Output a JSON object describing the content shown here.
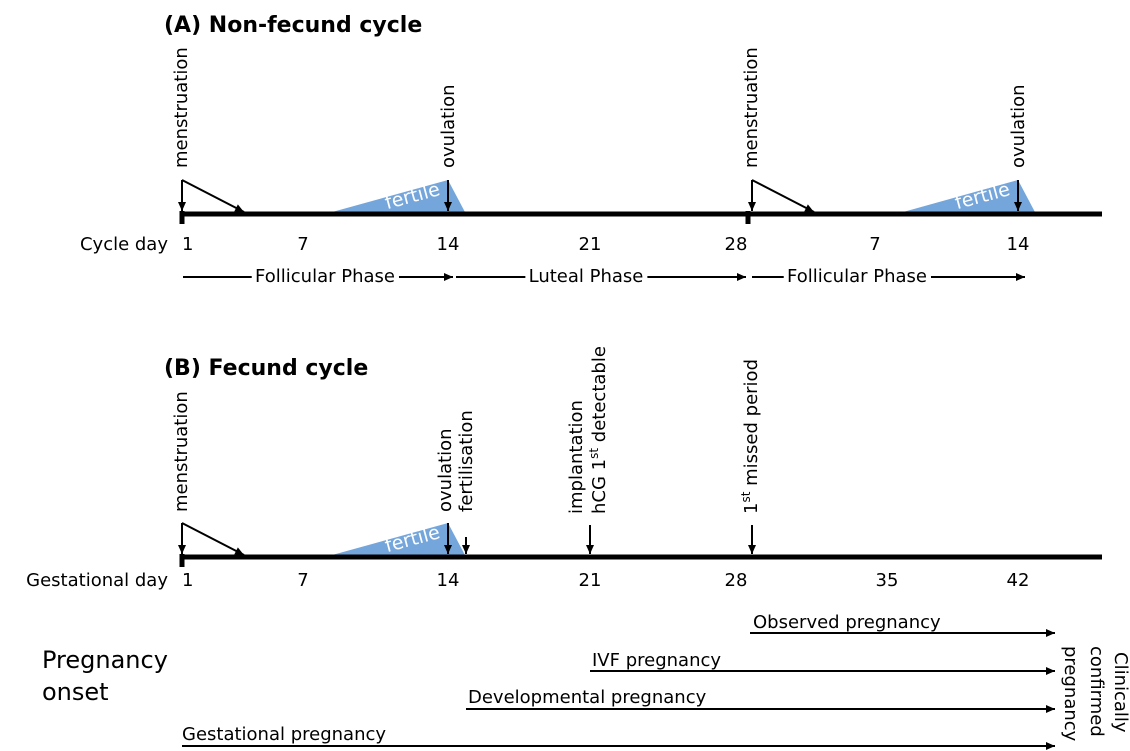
{
  "panel_a": {
    "title": "(A) Non-fecund cycle",
    "events": [
      "menstruation",
      "ovulation",
      "menstruation",
      "ovulation"
    ],
    "fertile": [
      "fertile",
      "fertile"
    ],
    "axis_label": "Cycle day",
    "ticks": [
      "1",
      "7",
      "14",
      "21",
      "28",
      "7",
      "14"
    ],
    "phases": [
      "Follicular Phase",
      "Luteal Phase",
      "Follicular Phase"
    ]
  },
  "panel_b": {
    "title": "(B) Fecund cycle",
    "events": [
      "menstruation",
      "ovulation",
      "fertilisation",
      "implantation"
    ],
    "hcg": {
      "text": "hCG 1",
      "sup": "st",
      "rest": " detectable"
    },
    "missed": {
      "text": "1",
      "sup": "st",
      "rest": " missed period"
    },
    "fertile": "fertile",
    "axis_label": "Gestational day",
    "ticks": [
      "1",
      "7",
      "14",
      "21",
      "28",
      "35",
      "42"
    ]
  },
  "pregnancy_onset": {
    "label": [
      "Pregnancy",
      "onset"
    ],
    "types": [
      "Observed pregnancy",
      "IVF pregnancy",
      "Developmental pregnancy",
      "Gestational pregnancy"
    ],
    "endpoint": [
      "Clinically",
      "confirmed",
      "pregnancy"
    ]
  }
}
